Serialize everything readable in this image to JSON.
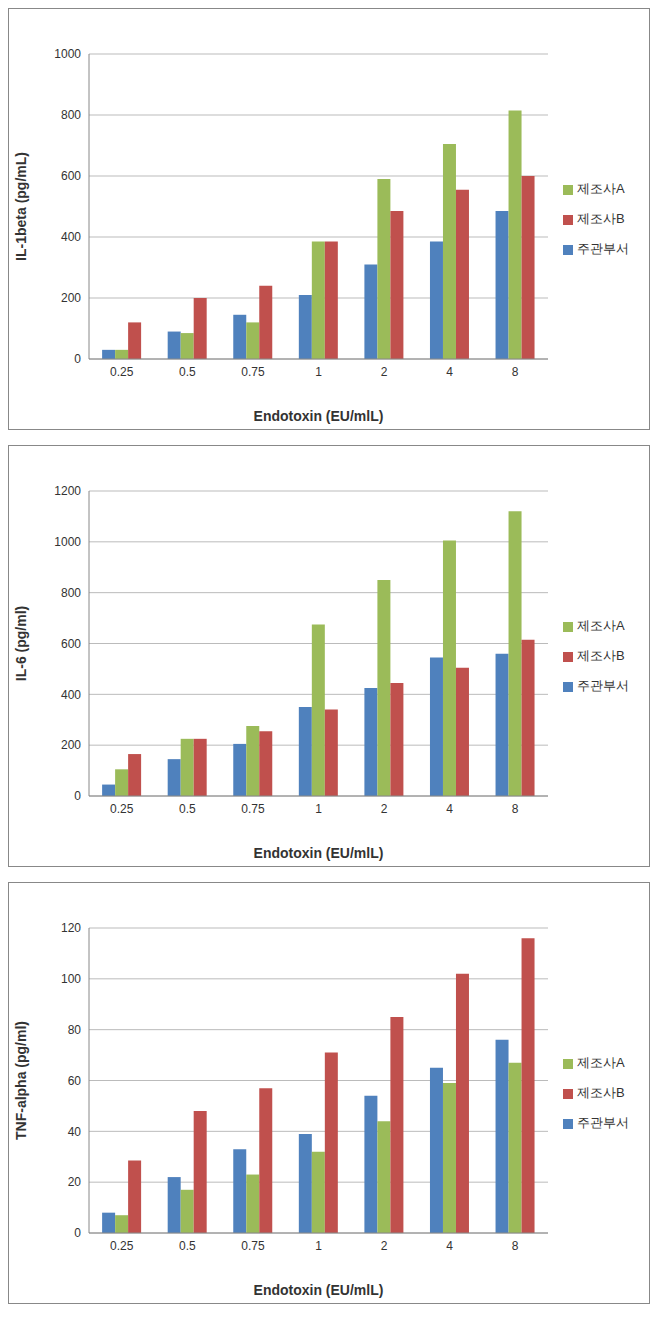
{
  "chart_data": [
    {
      "type": "bar",
      "y_label": "IL-1beta (pg/mL)",
      "x_label": "Endotoxin (EU/mlL)",
      "categories": [
        "0.25",
        "0.5",
        "0.75",
        "1",
        "2",
        "4",
        "8"
      ],
      "series": [
        {
          "name": "주관부서",
          "color": "#4f81bd",
          "values": [
            30,
            90,
            145,
            210,
            310,
            385,
            485
          ]
        },
        {
          "name": "제조사A",
          "color": "#9bbb59",
          "values": [
            30,
            85,
            120,
            385,
            590,
            705,
            815
          ]
        },
        {
          "name": "제조사B",
          "color": "#c0504d",
          "values": [
            120,
            200,
            240,
            385,
            485,
            555,
            600
          ]
        }
      ],
      "ylim": [
        0,
        1000
      ],
      "yticks": [
        0,
        200,
        400,
        600,
        800,
        1000
      ],
      "grid": true,
      "legend": "right"
    },
    {
      "type": "bar",
      "y_label": "IL-6 (pg/ml)",
      "x_label": "Endotoxin (EU/mlL)",
      "categories": [
        "0.25",
        "0.5",
        "0.75",
        "1",
        "2",
        "4",
        "8"
      ],
      "series": [
        {
          "name": "주관부서",
          "color": "#4f81bd",
          "values": [
            45,
            145,
            205,
            350,
            425,
            545,
            560
          ]
        },
        {
          "name": "제조사A",
          "color": "#9bbb59",
          "values": [
            105,
            225,
            275,
            675,
            850,
            1005,
            1120
          ]
        },
        {
          "name": "제조사B",
          "color": "#c0504d",
          "values": [
            165,
            225,
            255,
            340,
            445,
            505,
            615
          ]
        }
      ],
      "ylim": [
        0,
        1200
      ],
      "yticks": [
        0,
        200,
        400,
        600,
        800,
        1000,
        1200
      ],
      "grid": true,
      "legend": "right"
    },
    {
      "type": "bar",
      "y_label": "TNF-alpha (pg/ml)",
      "x_label": "Endotoxin (EU/mlL)",
      "categories": [
        "0.25",
        "0.5",
        "0.75",
        "1",
        "2",
        "4",
        "8"
      ],
      "series": [
        {
          "name": "주관부서",
          "color": "#4f81bd",
          "values": [
            8,
            22,
            33,
            39,
            54,
            65,
            76
          ]
        },
        {
          "name": "제조사A",
          "color": "#9bbb59",
          "values": [
            7,
            17,
            23,
            32,
            44,
            59,
            67
          ]
        },
        {
          "name": "제조사B",
          "color": "#c0504d",
          "values": [
            28.5,
            48,
            57,
            71,
            85,
            102,
            116
          ]
        }
      ],
      "ylim": [
        0,
        120
      ],
      "yticks": [
        0,
        20,
        40,
        60,
        80,
        100,
        120
      ],
      "grid": true,
      "legend": "right"
    }
  ]
}
